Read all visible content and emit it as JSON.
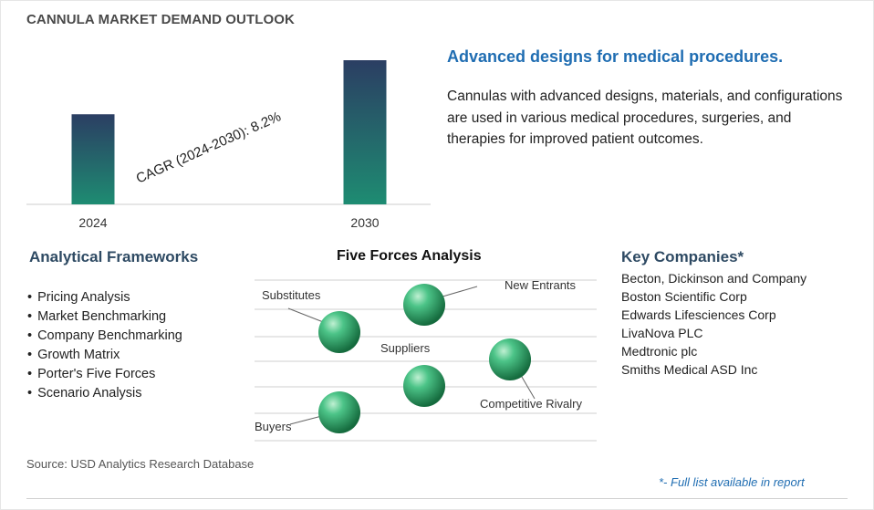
{
  "header": {
    "title": "CANNULA MARKET DEMAND OUTLOOK"
  },
  "chart_data": {
    "type": "bar",
    "categories": [
      "2024",
      "2030"
    ],
    "values": [
      1.0,
      1.6
    ],
    "annotation": "CAGR (2024-2030):   8.2%",
    "bar_colors": [
      "#1e8c72",
      "#2b3e63"
    ]
  },
  "highlight": {
    "tagline": "Advanced designs for medical procedures.",
    "description": "Cannulas with advanced designs, materials, and configurations are used in various medical procedures, surgeries, and therapies for improved patient outcomes."
  },
  "frameworks": {
    "heading": "Analytical Frameworks",
    "items": [
      "Pricing Analysis",
      "Market Benchmarking",
      "Company Benchmarking",
      "Growth Matrix",
      "Porter's Five Forces",
      "Scenario Analysis"
    ]
  },
  "five_forces": {
    "heading": "Five Forces Analysis",
    "labels": {
      "substitutes": "Substitutes",
      "new_entrants": "New Entrants",
      "suppliers": "Suppliers",
      "competitive_rivalry": "Competitive Rivalry",
      "buyers": "Buyers"
    },
    "ball_color": "#2fa36a"
  },
  "companies": {
    "heading": "Key Companies*",
    "items": [
      "Becton, Dickinson and Company",
      "Boston Scientific Corp",
      "Edwards Lifesciences Corp",
      "LivaNova PLC",
      "Medtronic plc",
      "Smiths Medical ASD Inc"
    ]
  },
  "footer": {
    "source": "Source: USD Analytics Research Database",
    "note": "*- Full list available in report"
  }
}
